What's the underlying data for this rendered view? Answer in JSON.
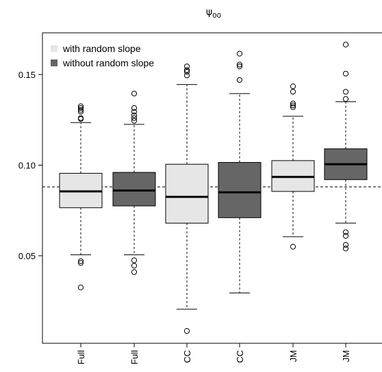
{
  "chart_data": {
    "type": "boxplot",
    "title": "ψ00",
    "title_main": "ψ",
    "title_sub": "00",
    "xlabel": "",
    "ylabel": "",
    "ylim": [
      0.0,
      0.17
    ],
    "y_ticks": [
      0.05,
      0.1,
      0.15
    ],
    "y_tick_labels": [
      "0.05",
      "0.10",
      "0.15"
    ],
    "reference_line": 0.088,
    "grid": false,
    "legend_position": "top-left",
    "legend": [
      {
        "label": "with random slope",
        "color": "#e6e6e6"
      },
      {
        "label": "without random slope",
        "color": "#666666"
      }
    ],
    "boxes": [
      {
        "label": "Full",
        "group": "with random slope",
        "color": "#e6e6e6",
        "whisker_low": 0.0505,
        "q1": 0.0765,
        "median": 0.0855,
        "q3": 0.0955,
        "whisker_high": 0.1235,
        "outliers": [
          0.0325,
          0.046,
          0.047,
          0.1255,
          0.126,
          0.1295,
          0.1305,
          0.1315,
          0.1325
        ]
      },
      {
        "label": "Full",
        "group": "without random slope",
        "color": "#666666",
        "whisker_low": 0.0505,
        "q1": 0.0775,
        "median": 0.086,
        "q3": 0.096,
        "whisker_high": 0.1225,
        "outliers": [
          0.041,
          0.0445,
          0.0475,
          0.1245,
          0.126,
          0.1275,
          0.1295,
          0.1315,
          0.1395
        ]
      },
      {
        "label": "CC",
        "group": "with random slope",
        "color": "#e6e6e6",
        "whisker_low": 0.0205,
        "q1": 0.068,
        "median": 0.0825,
        "q3": 0.1005,
        "whisker_high": 0.1445,
        "outliers": [
          0.0085,
          0.1495,
          0.1515,
          0.1525,
          0.1545
        ]
      },
      {
        "label": "CC",
        "group": "without random slope",
        "color": "#666666",
        "whisker_low": 0.0295,
        "q1": 0.071,
        "median": 0.085,
        "q3": 0.1015,
        "whisker_high": 0.1395,
        "outliers": [
          0.147,
          0.1545,
          0.1555,
          0.1615
        ]
      },
      {
        "label": "JM",
        "group": "with random slope",
        "color": "#e6e6e6",
        "whisker_low": 0.0605,
        "q1": 0.0855,
        "median": 0.0935,
        "q3": 0.1025,
        "whisker_high": 0.127,
        "outliers": [
          0.055,
          0.132,
          0.133,
          0.134,
          0.1405,
          0.1435
        ]
      },
      {
        "label": "JM",
        "group": "without random slope",
        "color": "#666666",
        "whisker_low": 0.068,
        "q1": 0.092,
        "median": 0.1005,
        "q3": 0.109,
        "whisker_high": 0.135,
        "outliers": [
          0.054,
          0.056,
          0.061,
          0.063,
          0.1365,
          0.1405,
          0.1505,
          0.1665
        ]
      }
    ]
  }
}
